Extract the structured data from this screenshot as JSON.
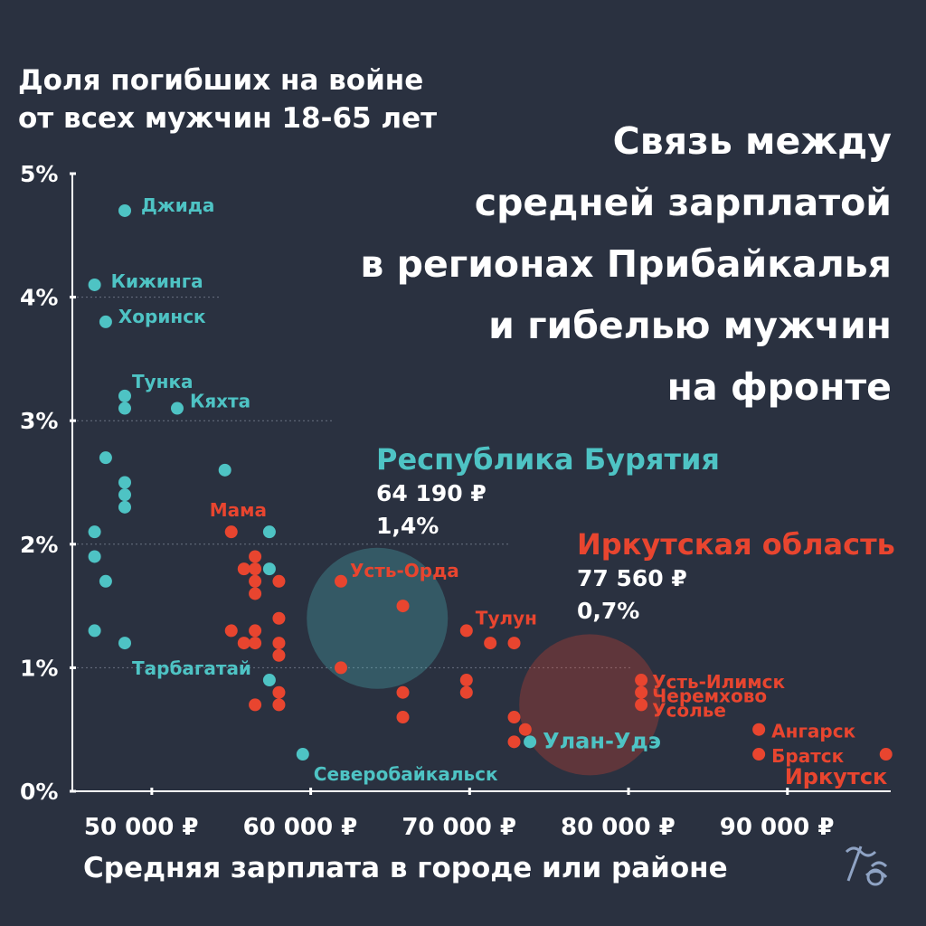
{
  "header": {
    "title_lines": [
      "Связь между",
      "средней зарплатой",
      "в регионах Прибайкалья",
      "и гибелью мужчин",
      "на фронте"
    ]
  },
  "colors": {
    "buryatia": "#4ec3c4",
    "irkutsk": "#e8452f",
    "background": "#2a3140",
    "text": "#ffffff"
  },
  "legend": {
    "buryatia": {
      "name": "Республика Бурятия",
      "salary": "64 190 ₽",
      "share": "1,4%"
    },
    "irkutsk": {
      "name": "Иркутская область",
      "salary": "77 560 ₽",
      "share": "0,7%"
    }
  },
  "chart_data": {
    "type": "scatter",
    "title": "",
    "ylabel_lines": [
      "Доля погибших на войне",
      "от всех мужчин 18-65 лет"
    ],
    "xlabel": "Средняя зарплата в городе или районе",
    "xlim": [
      45000,
      96500
    ],
    "ylim": [
      0,
      5
    ],
    "xticks": [
      50000,
      60000,
      70000,
      80000,
      90000
    ],
    "xtick_labels": [
      "50 000 ₽",
      "60 000 ₽",
      "70 000 ₽",
      "80 000 ₽",
      "90 000 ₽"
    ],
    "yticks": [
      0,
      1,
      2,
      3,
      4,
      5
    ],
    "ytick_labels": [
      "0%",
      "1%",
      "2%",
      "3%",
      "4%",
      "5%"
    ],
    "grid": "dotted horizontal",
    "series": [
      {
        "name": "Республика Бурятия",
        "color": "#4ec3c4",
        "points": [
          {
            "x": 48300,
            "y": 4.7,
            "label": "Джида"
          },
          {
            "x": 46400,
            "y": 4.1,
            "label": "Кижинга"
          },
          {
            "x": 47100,
            "y": 3.8,
            "label": "Хоринск"
          },
          {
            "x": 48300,
            "y": 3.2,
            "label": "Тунка"
          },
          {
            "x": 48300,
            "y": 3.1,
            "label": ""
          },
          {
            "x": 51600,
            "y": 3.1,
            "label": "Кяхта"
          },
          {
            "x": 47100,
            "y": 2.7,
            "label": ""
          },
          {
            "x": 48300,
            "y": 2.5,
            "label": ""
          },
          {
            "x": 48300,
            "y": 2.4,
            "label": ""
          },
          {
            "x": 48300,
            "y": 2.3,
            "label": ""
          },
          {
            "x": 54600,
            "y": 2.6,
            "label": ""
          },
          {
            "x": 46400,
            "y": 2.1,
            "label": ""
          },
          {
            "x": 46400,
            "y": 1.9,
            "label": ""
          },
          {
            "x": 47100,
            "y": 1.7,
            "label": ""
          },
          {
            "x": 57400,
            "y": 2.1,
            "label": ""
          },
          {
            "x": 57400,
            "y": 1.8,
            "label": ""
          },
          {
            "x": 46400,
            "y": 1.3,
            "label": ""
          },
          {
            "x": 48300,
            "y": 1.2,
            "label": "Тарбагатай"
          },
          {
            "x": 57400,
            "y": 0.9,
            "label": ""
          },
          {
            "x": 59500,
            "y": 0.3,
            "label": "Северобайкальск"
          },
          {
            "x": 73800,
            "y": 0.4,
            "label": "Улан-Удэ"
          }
        ]
      },
      {
        "name": "Иркутская область",
        "color": "#e8452f",
        "points": [
          {
            "x": 55000,
            "y": 2.1,
            "label": "Мама"
          },
          {
            "x": 56500,
            "y": 1.9,
            "label": ""
          },
          {
            "x": 55800,
            "y": 1.8,
            "label": ""
          },
          {
            "x": 56500,
            "y": 1.8,
            "label": ""
          },
          {
            "x": 56500,
            "y": 1.7,
            "label": ""
          },
          {
            "x": 58000,
            "y": 1.7,
            "label": ""
          },
          {
            "x": 56500,
            "y": 1.6,
            "label": ""
          },
          {
            "x": 58000,
            "y": 1.4,
            "label": ""
          },
          {
            "x": 55000,
            "y": 1.3,
            "label": ""
          },
          {
            "x": 56500,
            "y": 1.3,
            "label": ""
          },
          {
            "x": 55800,
            "y": 1.2,
            "label": ""
          },
          {
            "x": 56500,
            "y": 1.2,
            "label": ""
          },
          {
            "x": 58000,
            "y": 1.2,
            "label": ""
          },
          {
            "x": 58000,
            "y": 1.1,
            "label": ""
          },
          {
            "x": 58000,
            "y": 0.8,
            "label": ""
          },
          {
            "x": 56500,
            "y": 0.7,
            "label": ""
          },
          {
            "x": 58000,
            "y": 0.7,
            "label": ""
          },
          {
            "x": 61900,
            "y": 1.7,
            "label": "Усть-Орда"
          },
          {
            "x": 61900,
            "y": 1.0,
            "label": ""
          },
          {
            "x": 65800,
            "y": 1.5,
            "label": ""
          },
          {
            "x": 65800,
            "y": 0.8,
            "label": ""
          },
          {
            "x": 65800,
            "y": 0.6,
            "label": ""
          },
          {
            "x": 69800,
            "y": 1.3,
            "label": "Тулун"
          },
          {
            "x": 71300,
            "y": 1.2,
            "label": ""
          },
          {
            "x": 72800,
            "y": 1.2,
            "label": ""
          },
          {
            "x": 69800,
            "y": 0.9,
            "label": ""
          },
          {
            "x": 69800,
            "y": 0.8,
            "label": ""
          },
          {
            "x": 72800,
            "y": 0.6,
            "label": ""
          },
          {
            "x": 73500,
            "y": 0.5,
            "label": ""
          },
          {
            "x": 72800,
            "y": 0.4,
            "label": ""
          },
          {
            "x": 80800,
            "y": 0.9,
            "label": "Усть-Илимск"
          },
          {
            "x": 80800,
            "y": 0.8,
            "label": "Черемхово"
          },
          {
            "x": 80800,
            "y": 0.7,
            "label": "Усолье"
          },
          {
            "x": 88200,
            "y": 0.5,
            "label": "Ангарск"
          },
          {
            "x": 88200,
            "y": 0.3,
            "label": "Братск"
          },
          {
            "x": 96200,
            "y": 0.3,
            "label": "Иркутск"
          }
        ]
      }
    ],
    "averages": [
      {
        "name": "Республика Бурятия",
        "x": 64190,
        "y": 1.4,
        "color": "#4ec3c4"
      },
      {
        "name": "Иркутская область",
        "x": 77560,
        "y": 0.7,
        "color": "#e8452f"
      }
    ]
  }
}
